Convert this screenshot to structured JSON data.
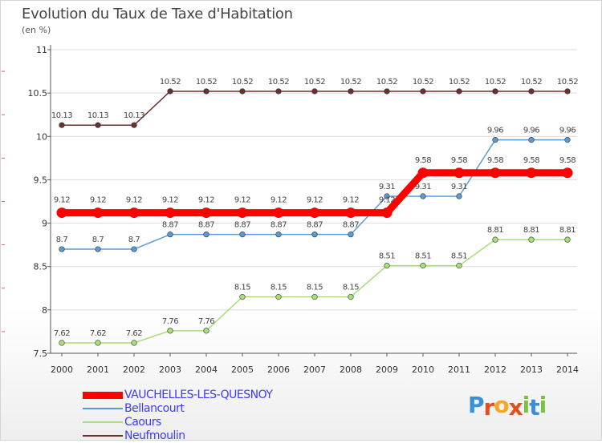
{
  "page": {
    "title": "Evolution du Taux de Taxe d'Habitation",
    "unit": "(en %)"
  },
  "logo": {
    "letters": [
      "P",
      "r",
      "o",
      "x",
      "i",
      "t",
      "i"
    ],
    "colors": [
      "#3a8fd9",
      "#e84d1c",
      "#f5a623",
      "#e84d1c",
      "#7cc242",
      "#3a8fd9",
      "#7cc242"
    ]
  },
  "chart_data": {
    "type": "line",
    "title": "Evolution du Taux de Taxe d'Habitation",
    "ylabel": "(en %)",
    "xlabel": "",
    "ylim": [
      7.5,
      11
    ],
    "yticks": [
      7.5,
      8,
      8.5,
      9,
      9.5,
      10,
      10.5,
      11
    ],
    "ytick_labels": [
      "7.5",
      "8",
      "8.5",
      "9",
      "9.5",
      "10",
      "10.5",
      "11"
    ],
    "categories": [
      "2000",
      "2001",
      "2002",
      "2003",
      "2004",
      "2005",
      "2006",
      "2007",
      "2008",
      "2009",
      "2010",
      "2011",
      "2012",
      "2013",
      "2014"
    ],
    "series": [
      {
        "name": "Neufmoulin",
        "color": "#6b2f2f",
        "values": [
          10.13,
          10.13,
          10.13,
          10.52,
          10.52,
          10.52,
          10.52,
          10.52,
          10.52,
          10.52,
          10.52,
          10.52,
          10.52,
          10.52,
          10.52
        ],
        "labels": [
          "10.13",
          "10.13",
          "10.13",
          "10.52",
          "10.52",
          "10.52",
          "10.52",
          "10.52",
          "10.52",
          "10.52",
          "10.52",
          "10.52",
          "10.52",
          "10.52",
          "10.52"
        ]
      },
      {
        "name": "Caours",
        "color": "#a6e07a",
        "values": [
          7.62,
          7.62,
          7.62,
          7.76,
          7.76,
          8.15,
          8.15,
          8.15,
          8.15,
          8.51,
          8.51,
          8.51,
          8.81,
          8.81,
          8.81
        ],
        "labels": [
          "7.62",
          "7.62",
          "7.62",
          "7.76",
          "7.76",
          "8.15",
          "8.15",
          "8.15",
          "8.15",
          "8.51",
          "8.51",
          "8.51",
          "8.81",
          "8.81",
          "8.81"
        ]
      },
      {
        "name": "Bellancourt",
        "color": "#5b9bd5",
        "values": [
          8.7,
          8.7,
          8.7,
          8.87,
          8.87,
          8.87,
          8.87,
          8.87,
          8.87,
          9.31,
          9.31,
          9.31,
          9.96,
          9.96,
          9.96
        ],
        "labels": [
          "8.7",
          "8.7",
          "8.7",
          "8.87",
          "8.87",
          "8.87",
          "8.87",
          "8.87",
          "8.87",
          "9.31",
          "9.31",
          "9.31",
          "9.96",
          "9.96",
          "9.96"
        ]
      },
      {
        "name": "VAUCHELLES-LES-QUESNOY",
        "color": "#ff0000",
        "values": [
          9.12,
          9.12,
          9.12,
          9.12,
          9.12,
          9.12,
          9.12,
          9.12,
          9.12,
          9.12,
          9.58,
          9.58,
          9.58,
          9.58,
          9.58
        ],
        "labels": [
          "9.12",
          "9.12",
          "9.12",
          "9.12",
          "9.12",
          "9.12",
          "9.12",
          "9.12",
          "9.12",
          "9.12",
          "9.58",
          "9.58",
          "9.58",
          "9.58",
          "9.58"
        ]
      }
    ],
    "legend": [
      {
        "name": "VAUCHELLES-LES-QUESNOY",
        "color": "#ff0000",
        "weight": "thick"
      },
      {
        "name": "Bellancourt",
        "color": "#5b9bd5",
        "weight": "thin"
      },
      {
        "name": "Caours",
        "color": "#a6e07a",
        "weight": "thin"
      },
      {
        "name": "Neufmoulin",
        "color": "#6b2f2f",
        "weight": "thin"
      }
    ],
    "legend_position": "bottom-left"
  }
}
